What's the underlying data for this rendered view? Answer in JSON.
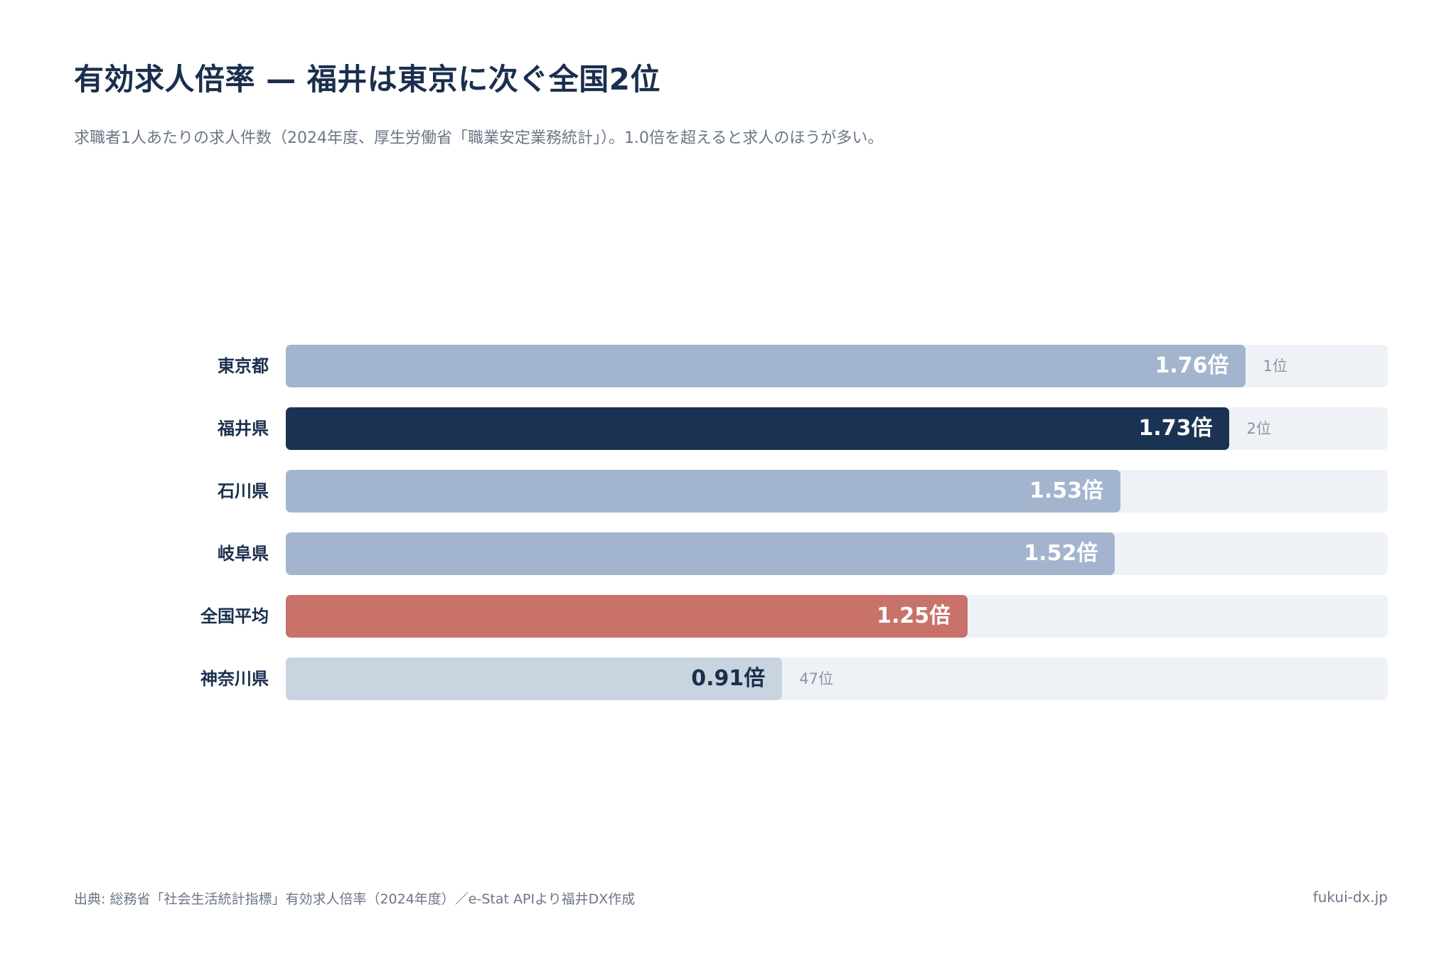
{
  "title": "有効求人倍率 — 福井は東京に次ぐ全国2位",
  "subtitle": "求職者1人あたりの求人件数（2024年度、厚生労働省「職業安定業務統計」）。1.0倍を超えると求人のほうが多い。",
  "footer": {
    "source": "出典: 総務省「社会生活統計指標」有効求人倍率（2024年度）／e-Stat APIより福井DX作成",
    "site": "fukui-dx.jp"
  },
  "colors": {
    "default_bar": "#a3b5ce",
    "highlight_bar": "#1b3352",
    "average_bar": "#c8726a",
    "low_bar": "#c9d4e1",
    "track": "#eef2f7",
    "value_on_dark": "#ffffff",
    "value_on_light": "#1a2f4d",
    "rank_text": "#8a93a0"
  },
  "chart_data": {
    "type": "bar",
    "orientation": "horizontal",
    "categories": [
      "東京都",
      "福井県",
      "石川県",
      "岐阜県",
      "全国平均",
      "神奈川県"
    ],
    "values": [
      1.76,
      1.73,
      1.53,
      1.52,
      1.25,
      0.91
    ],
    "value_labels": [
      "1.76倍",
      "1.73倍",
      "1.53倍",
      "1.52倍",
      "1.25倍",
      "0.91倍"
    ],
    "ranks": [
      "1位",
      "2位",
      "",
      "",
      "",
      "47位"
    ],
    "styles": [
      "default",
      "highlight",
      "default",
      "default",
      "average",
      "low"
    ],
    "xlim": [
      0,
      2.02
    ],
    "grid": false,
    "legend": false
  }
}
